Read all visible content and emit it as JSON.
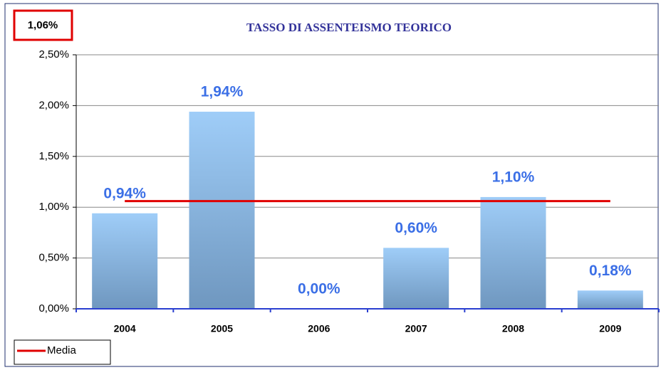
{
  "chart_data": {
    "type": "bar",
    "title": "TASSO DI ASSENTEISMO TEORICO",
    "categories": [
      "2004",
      "2005",
      "2006",
      "2007",
      "2008",
      "2009"
    ],
    "values": [
      0.94,
      1.94,
      0,
      0.6,
      1.1,
      0.18
    ],
    "value_labels": [
      "0,94%",
      "1,94%",
      "0,00%",
      "0,60%",
      "1,10%",
      "0,18%"
    ],
    "color": "#8fbbe8",
    "average": {
      "name": "Media",
      "value": 1.06,
      "value_label": "1,06%",
      "color": "#e00000"
    },
    "ylim": [
      0,
      2.5
    ],
    "yticks": [
      {
        "value": 0,
        "label": "0,00%"
      },
      {
        "value": 0.5,
        "label": "0,50%"
      },
      {
        "value": 1,
        "label": "1,00%"
      },
      {
        "value": 1.5,
        "label": "1,50%"
      },
      {
        "value": 2,
        "label": "2,00%"
      },
      {
        "value": 2.5,
        "label": "2,50%"
      }
    ],
    "grid": true,
    "legend": "bottom-left"
  }
}
